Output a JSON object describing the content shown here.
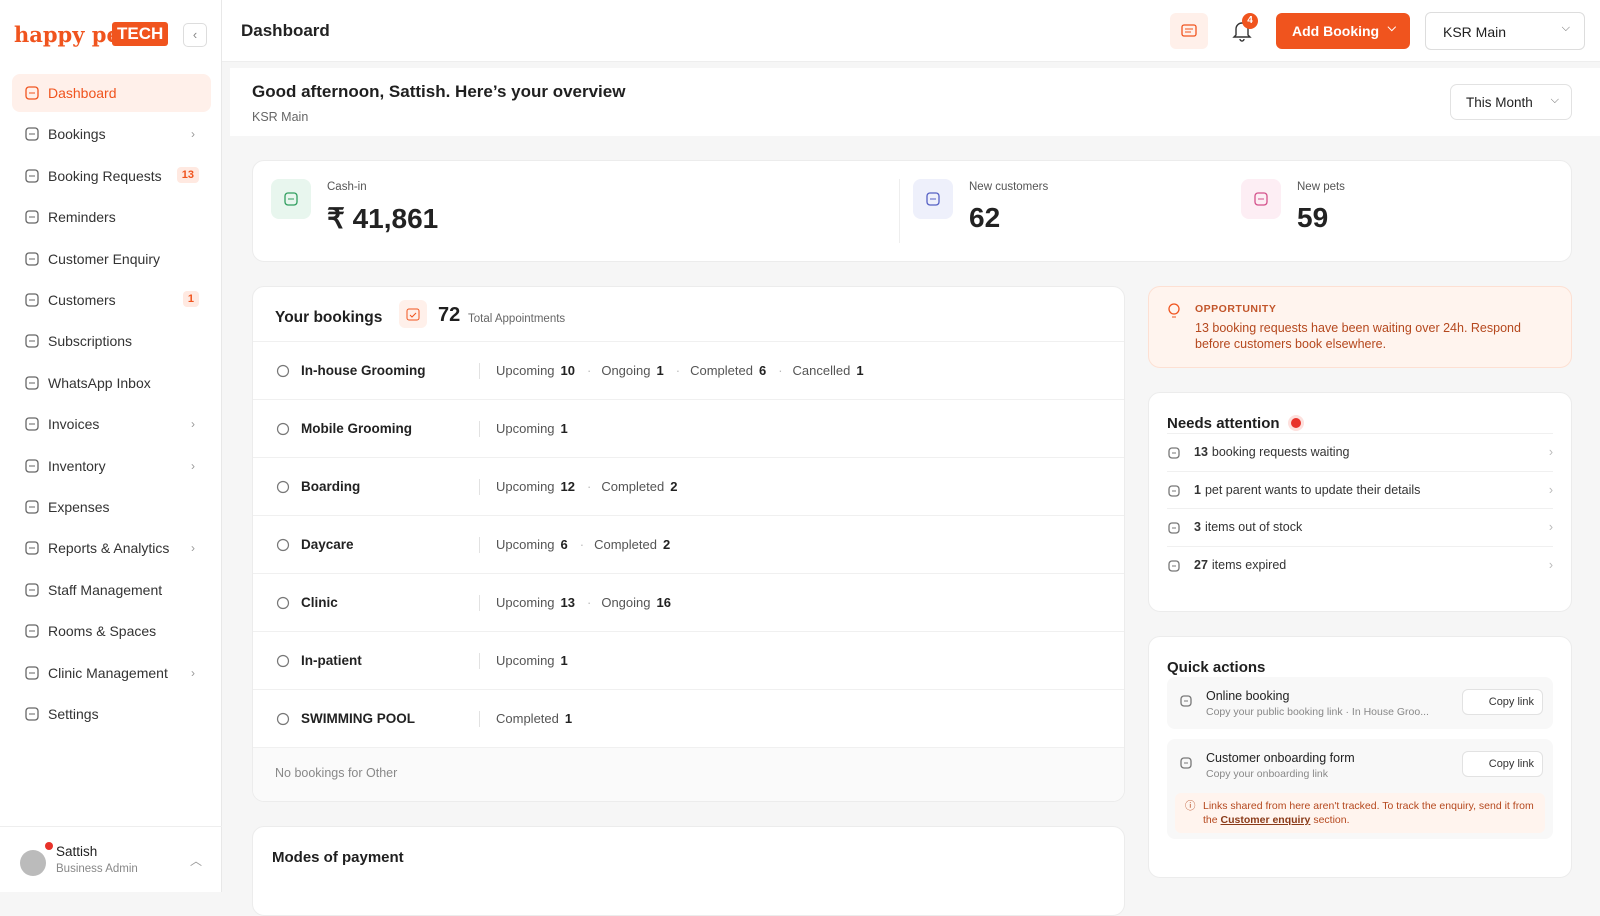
{
  "brand": {
    "name": "happy pet",
    "tag": "TECH"
  },
  "header": {
    "title": "Dashboard",
    "notifications": "4",
    "add_booking": "Add Booking",
    "branch": "KSR Main"
  },
  "sidebar": {
    "items": [
      {
        "label": "Dashboard"
      },
      {
        "label": "Bookings"
      },
      {
        "label": "Booking Requests",
        "badge": "13"
      },
      {
        "label": "Reminders"
      },
      {
        "label": "Customer Enquiry"
      },
      {
        "label": "Customers",
        "badge": "1"
      },
      {
        "label": "Subscriptions"
      },
      {
        "label": "WhatsApp Inbox"
      },
      {
        "label": "Invoices"
      },
      {
        "label": "Inventory"
      },
      {
        "label": "Expenses"
      },
      {
        "label": "Reports & Analytics"
      },
      {
        "label": "Staff Management"
      },
      {
        "label": "Rooms & Spaces"
      },
      {
        "label": "Clinic Management"
      },
      {
        "label": "Settings"
      }
    ]
  },
  "user": {
    "name": "Sattish",
    "role": "Business Admin"
  },
  "overview": {
    "greeting": "Good afternoon, Sattish. Here’s your overview",
    "branch": "KSR Main",
    "period": "This Month"
  },
  "stats": [
    {
      "label": "Cash-in",
      "value": "₹ 41,861"
    },
    {
      "label": "New customers",
      "value": "62"
    },
    {
      "label": "New pets",
      "value": "59"
    }
  ],
  "bookings": {
    "title": "Your bookings",
    "total": "72",
    "total_label": "Total Appointments",
    "rows": [
      {
        "service": "In-house Grooming",
        "counts": [
          {
            "label": "Upcoming",
            "value": "10"
          },
          {
            "label": "Ongoing",
            "value": "1"
          },
          {
            "label": "Completed",
            "value": "6"
          },
          {
            "label": "Cancelled",
            "value": "1"
          }
        ]
      },
      {
        "service": "Mobile Grooming",
        "counts": [
          {
            "label": "Upcoming",
            "value": "1"
          }
        ]
      },
      {
        "service": "Boarding",
        "counts": [
          {
            "label": "Upcoming",
            "value": "12"
          },
          {
            "label": "Completed",
            "value": "2"
          }
        ]
      },
      {
        "service": "Daycare",
        "counts": [
          {
            "label": "Upcoming",
            "value": "6"
          },
          {
            "label": "Completed",
            "value": "2"
          }
        ]
      },
      {
        "service": "Clinic",
        "counts": [
          {
            "label": "Upcoming",
            "value": "13"
          },
          {
            "label": "Ongoing",
            "value": "16"
          }
        ]
      },
      {
        "service": "In-patient",
        "counts": [
          {
            "label": "Upcoming",
            "value": "1"
          }
        ]
      },
      {
        "service": "SWIMMING POOL",
        "counts": [
          {
            "label": "Completed",
            "value": "1"
          }
        ]
      }
    ],
    "footer": "No bookings for Other"
  },
  "opportunity": {
    "label": "OPPORTUNITY",
    "text": "13 booking requests have been waiting over 24h. Respond before customers book elsewhere."
  },
  "attention": {
    "title": "Needs attention",
    "items": [
      {
        "count": "13",
        "text": "booking requests waiting"
      },
      {
        "count": "1",
        "text": "pet parent wants to update their details"
      },
      {
        "count": "3",
        "text": "items out of stock"
      },
      {
        "count": "27",
        "text": "items expired"
      }
    ]
  },
  "quick_actions": {
    "title": "Quick actions",
    "items": [
      {
        "title": "Online booking",
        "subtitle": "Copy your public booking link · In House Groo...",
        "button": "Copy link"
      },
      {
        "title": "Customer onboarding form",
        "subtitle": "Copy your onboarding link",
        "button": "Copy link"
      }
    ],
    "note": {
      "before": "Links shared from here aren't tracked. To track the enquiry, send it from the",
      "link": "Customer enquiry",
      "after": "section."
    }
  },
  "payments": {
    "title": "Modes of payment"
  }
}
